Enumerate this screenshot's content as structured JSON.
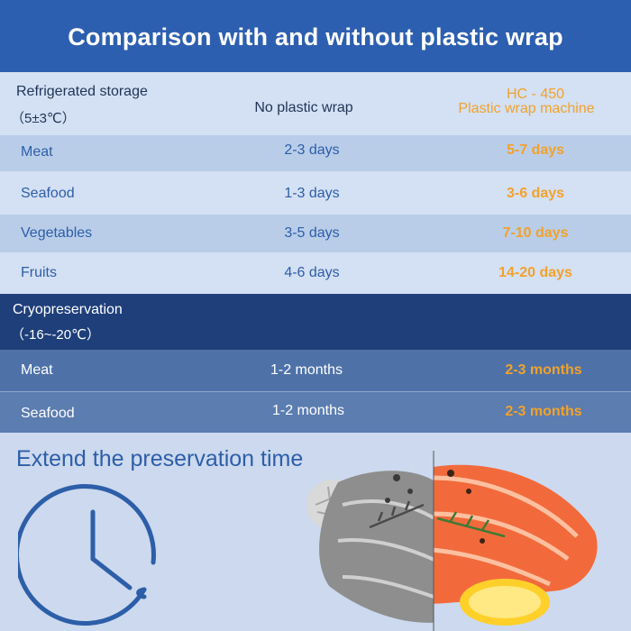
{
  "header": {
    "title": "Comparison with and without plastic wrap"
  },
  "refrigerated": {
    "label": "Refrigerated storage",
    "temp": "（5±3℃）",
    "col_no_wrap": "No plastic wrap",
    "col_machine_model": "HC - 450",
    "col_machine_name": "Plastic wrap machine",
    "rows": [
      {
        "item": "Meat",
        "no_wrap": "2-3 days",
        "with_wrap": "5-7 days"
      },
      {
        "item": "Seafood",
        "no_wrap": "1-3 days",
        "with_wrap": "3-6 days"
      },
      {
        "item": "Vegetables",
        "no_wrap": "3-5 days",
        "with_wrap": "7-10 days"
      },
      {
        "item": "Fruits",
        "no_wrap": "4-6 days",
        "with_wrap": "14-20 days"
      }
    ]
  },
  "cryo": {
    "label": "Cryopreservation",
    "temp": "（-16~-20℃）",
    "rows": [
      {
        "item": "Meat",
        "no_wrap": "1-2 months",
        "with_wrap": "2-3 months"
      },
      {
        "item": "Seafood",
        "no_wrap": "1-2 months",
        "with_wrap": "2-3 months"
      }
    ]
  },
  "bottom": {
    "heading": "Extend the preservation time"
  },
  "icons": {
    "clock": "clock-icon",
    "salmon": "salmon-comparison-image"
  },
  "colors": {
    "header_bg": "#2d5fb0",
    "accent_orange": "#f2a22a",
    "cryo_header_bg": "#1f3f7a",
    "cryo_row_bg": "#4e72a8"
  }
}
